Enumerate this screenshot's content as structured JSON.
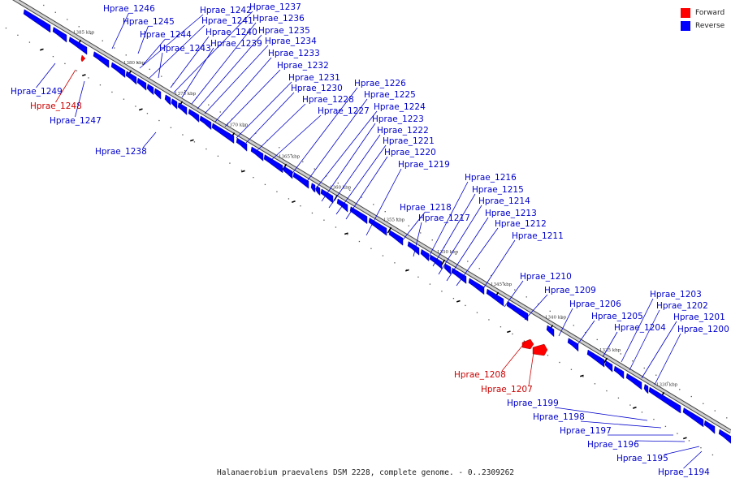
{
  "caption": "Halanaerobium praevalens DSM 2228, complete genome. - 0..2309262",
  "legend": [
    {
      "label": "Forward",
      "color": "#ff0000"
    },
    {
      "label": "Reverse",
      "color": "#0000ff"
    }
  ],
  "colors": {
    "forward": "#ff0000",
    "reverse": "#0000ff",
    "forward_text": "#cc0000",
    "reverse_text": "#0000cc",
    "backbone": "#8a8a8a"
  },
  "kbp_marks": [
    "1385 kbp",
    "1380 kbp",
    "1375 kbp",
    "1370 kbp",
    "1365 kbp",
    "1360 kbp",
    "1355 kbp",
    "1350 kbp",
    "1345 kbp",
    "1340 kbp",
    "1335 kbp",
    "1330 kbp"
  ],
  "genes": [
    {
      "name": "Hprae_1249",
      "strand": "reverse"
    },
    {
      "name": "Hprae_1248",
      "strand": "forward"
    },
    {
      "name": "Hprae_1247",
      "strand": "reverse"
    },
    {
      "name": "Hprae_1246",
      "strand": "reverse"
    },
    {
      "name": "Hprae_1245",
      "strand": "reverse"
    },
    {
      "name": "Hprae_1244",
      "strand": "reverse"
    },
    {
      "name": "Hprae_1243",
      "strand": "reverse"
    },
    {
      "name": "Hprae_1242",
      "strand": "reverse"
    },
    {
      "name": "Hprae_1241",
      "strand": "reverse"
    },
    {
      "name": "Hprae_1240",
      "strand": "reverse"
    },
    {
      "name": "Hprae_1239",
      "strand": "reverse"
    },
    {
      "name": "Hprae_1238",
      "strand": "reverse"
    },
    {
      "name": "Hprae_1237",
      "strand": "reverse"
    },
    {
      "name": "Hprae_1236",
      "strand": "reverse"
    },
    {
      "name": "Hprae_1235",
      "strand": "reverse"
    },
    {
      "name": "Hprae_1234",
      "strand": "reverse"
    },
    {
      "name": "Hprae_1233",
      "strand": "reverse"
    },
    {
      "name": "Hprae_1232",
      "strand": "reverse"
    },
    {
      "name": "Hprae_1231",
      "strand": "reverse"
    },
    {
      "name": "Hprae_1230",
      "strand": "reverse"
    },
    {
      "name": "Hprae_1228",
      "strand": "reverse"
    },
    {
      "name": "Hprae_1227",
      "strand": "reverse"
    },
    {
      "name": "Hprae_1226",
      "strand": "reverse"
    },
    {
      "name": "Hprae_1225",
      "strand": "reverse"
    },
    {
      "name": "Hprae_1224",
      "strand": "reverse"
    },
    {
      "name": "Hprae_1223",
      "strand": "reverse"
    },
    {
      "name": "Hprae_1222",
      "strand": "reverse"
    },
    {
      "name": "Hprae_1221",
      "strand": "reverse"
    },
    {
      "name": "Hprae_1220",
      "strand": "reverse"
    },
    {
      "name": "Hprae_1219",
      "strand": "reverse"
    },
    {
      "name": "Hprae_1218",
      "strand": "reverse"
    },
    {
      "name": "Hprae_1217",
      "strand": "reverse"
    },
    {
      "name": "Hprae_1216",
      "strand": "reverse"
    },
    {
      "name": "Hprae_1215",
      "strand": "reverse"
    },
    {
      "name": "Hprae_1214",
      "strand": "reverse"
    },
    {
      "name": "Hprae_1213",
      "strand": "reverse"
    },
    {
      "name": "Hprae_1212",
      "strand": "reverse"
    },
    {
      "name": "Hprae_1211",
      "strand": "reverse"
    },
    {
      "name": "Hprae_1210",
      "strand": "reverse"
    },
    {
      "name": "Hprae_1209",
      "strand": "reverse"
    },
    {
      "name": "Hprae_1208",
      "strand": "forward"
    },
    {
      "name": "Hprae_1207",
      "strand": "forward"
    },
    {
      "name": "Hprae_1206",
      "strand": "reverse"
    },
    {
      "name": "Hprae_1205",
      "strand": "reverse"
    },
    {
      "name": "Hprae_1204",
      "strand": "reverse"
    },
    {
      "name": "Hprae_1203",
      "strand": "reverse"
    },
    {
      "name": "Hprae_1202",
      "strand": "reverse"
    },
    {
      "name": "Hprae_1201",
      "strand": "reverse"
    },
    {
      "name": "Hprae_1200",
      "strand": "reverse"
    },
    {
      "name": "Hprae_1199",
      "strand": "reverse"
    },
    {
      "name": "Hprae_1198",
      "strand": "reverse"
    },
    {
      "name": "Hprae_1197",
      "strand": "reverse"
    },
    {
      "name": "Hprae_1196",
      "strand": "reverse"
    },
    {
      "name": "Hprae_1195",
      "strand": "reverse"
    },
    {
      "name": "Hprae_1194",
      "strand": "reverse"
    }
  ]
}
